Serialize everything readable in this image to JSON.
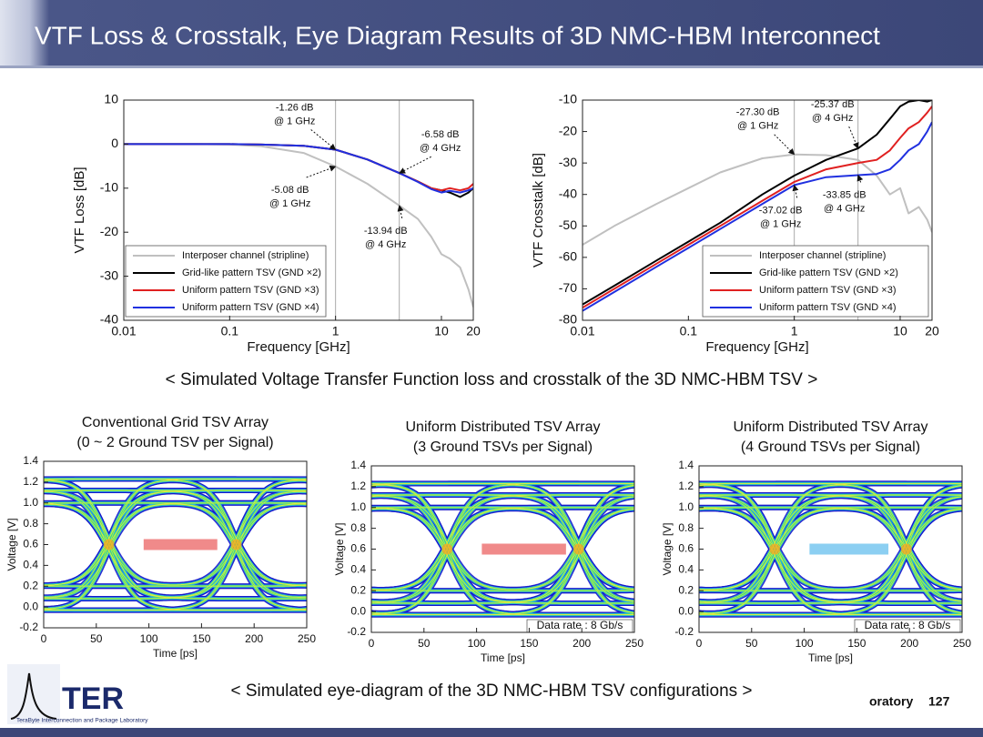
{
  "header": {
    "title": "VTF Loss & Crosstalk, Eye Diagram Results of 3D NMC-HBM Interconnect"
  },
  "captions": [
    "< Simulated Voltage Transfer Function loss and crosstalk of the 3D NMC-HBM TSV >",
    "< Simulated eye-diagram of the 3D NMC-HBM TSV configurations >"
  ],
  "footer": {
    "logo": "TER",
    "lab": "TeraByte Interconnection and Package Laboratory",
    "lab_tail": "oratory",
    "page": "127"
  },
  "chart_data": [
    {
      "type": "line",
      "xscale": "log",
      "x_label": "Frequency [GHz]",
      "y_label": "VTF Loss [dB]",
      "xlim": [
        0.01,
        20
      ],
      "xticks": [
        0.01,
        0.1,
        1,
        10,
        20
      ],
      "ylim": [
        -40,
        10
      ],
      "yticks": [
        -40,
        -30,
        -20,
        -10,
        0,
        10
      ],
      "vlines": [
        1,
        4
      ],
      "legend": "lower left",
      "x": [
        0.01,
        0.02,
        0.05,
        0.1,
        0.2,
        0.5,
        1,
        2,
        4,
        6,
        8,
        10,
        12,
        15,
        18,
        20
      ],
      "series": [
        {
          "name": "Interposer channel (stripline)",
          "color": "#c0c0c0",
          "values": [
            0,
            0,
            0,
            -0.1,
            -0.5,
            -2,
            -5.08,
            -9,
            -13.94,
            -17,
            -21,
            -25,
            -26,
            -28,
            -33,
            -37
          ]
        },
        {
          "name": "Grid-like pattern TSV (GND ×2)",
          "color": "#000000",
          "values": [
            0,
            0,
            0,
            0,
            -0.1,
            -0.4,
            -1.26,
            -3.5,
            -6.58,
            -8.5,
            -10,
            -10.5,
            -11,
            -12,
            -11,
            -10
          ]
        },
        {
          "name": "Uniform pattern TSV (GND ×3)",
          "color": "#e02020",
          "values": [
            0,
            0,
            0,
            0,
            -0.1,
            -0.4,
            -1.26,
            -3.5,
            -6.58,
            -8.5,
            -10,
            -10.5,
            -10,
            -10.5,
            -10,
            -9
          ]
        },
        {
          "name": "Uniform pattern TSV (GND ×4)",
          "color": "#2030e0",
          "values": [
            0,
            0,
            0,
            0,
            -0.1,
            -0.4,
            -1.26,
            -3.5,
            -6.58,
            -8.6,
            -10.2,
            -11,
            -10.6,
            -11,
            -10.5,
            -10
          ]
        }
      ],
      "annotations": [
        {
          "text": [
            "-1.26 dB",
            "@ 1 GHz"
          ],
          "x": 1,
          "y": -1.26
        },
        {
          "text": [
            "-6.58 dB",
            "@ 4 GHz"
          ],
          "x": 4,
          "y": -6.58
        },
        {
          "text": [
            "-5.08 dB",
            "@ 1 GHz"
          ],
          "x": 1,
          "y": -5.08
        },
        {
          "text": [
            "-13.94 dB",
            "@ 4 GHz"
          ],
          "x": 4,
          "y": -13.94
        }
      ]
    },
    {
      "type": "line",
      "xscale": "log",
      "x_label": "Frequency [GHz]",
      "y_label": "VTF Crosstalk [dB]",
      "xlim": [
        0.01,
        20
      ],
      "xticks": [
        0.01,
        0.1,
        1,
        10,
        20
      ],
      "ylim": [
        -80,
        -10
      ],
      "yticks": [
        -80,
        -70,
        -60,
        -50,
        -40,
        -30,
        -20,
        -10
      ],
      "vlines": [
        1,
        4
      ],
      "legend": "lower right",
      "x": [
        0.01,
        0.02,
        0.05,
        0.1,
        0.2,
        0.5,
        1,
        2,
        4,
        6,
        8,
        10,
        12,
        15,
        18,
        20
      ],
      "series": [
        {
          "name": "Interposer channel (stripline)",
          "color": "#c0c0c0",
          "values": [
            -56,
            -50,
            -43,
            -38,
            -33,
            -28.5,
            -27.3,
            -27.5,
            -29,
            -34,
            -40,
            -38,
            -46,
            -44,
            -48,
            -52
          ]
        },
        {
          "name": "Grid-like pattern TSV (GND ×2)",
          "color": "#000000",
          "values": [
            -75,
            -69,
            -61,
            -55,
            -49,
            -40,
            -34,
            -29,
            -25.37,
            -21,
            -16,
            -12,
            -10.5,
            -10,
            -10.5,
            -10
          ]
        },
        {
          "name": "Uniform pattern TSV (GND ×3)",
          "color": "#e02020",
          "values": [
            -76,
            -70,
            -62,
            -56,
            -50,
            -42,
            -36,
            -32,
            -30,
            -29,
            -26,
            -22,
            -19,
            -17,
            -14,
            -12
          ]
        },
        {
          "name": "Uniform pattern TSV (GND ×4)",
          "color": "#2030e0",
          "values": [
            -77,
            -71,
            -63,
            -57,
            -51,
            -43,
            -37.02,
            -34.5,
            -33.85,
            -33.5,
            -32,
            -29,
            -26,
            -24,
            -20,
            -17
          ]
        }
      ],
      "annotations": [
        {
          "text": [
            "-27.30 dB",
            "@ 1 GHz"
          ],
          "x": 1,
          "y": -27.3
        },
        {
          "text": [
            "-25.37 dB",
            "@ 4 GHz"
          ],
          "x": 4,
          "y": -25.37
        },
        {
          "text": [
            "-37.02 dB",
            "@ 1 GHz"
          ],
          "x": 1,
          "y": -37.02
        },
        {
          "text": [
            "-33.85 dB",
            "@ 4 GHz"
          ],
          "x": 4,
          "y": -33.85
        }
      ]
    },
    {
      "type": "eye",
      "title": [
        "Conventional Grid TSV Array",
        "(0 ~ 2 Ground TSV per Signal)"
      ],
      "x_label": "Time [ps]",
      "y_label": "Voltage [V]",
      "xlim": [
        0,
        250
      ],
      "xticks": [
        0,
        50,
        100,
        150,
        200,
        250
      ],
      "ylim": [
        -0.2,
        1.4
      ],
      "yticks": [
        -0.2,
        {
          "value": 0,
          "label": "0.0"
        },
        0.2,
        0.4,
        0.6,
        0.8,
        {
          "value": 1,
          "label": "1.0"
        },
        1.2,
        1.4
      ],
      "crossings": [
        62,
        183
      ],
      "eye_bar": {
        "x": [
          95,
          165
        ],
        "y": 0.6,
        "color": "#f08a8a"
      }
    },
    {
      "type": "eye",
      "title": [
        "Uniform Distributed TSV Array",
        "(3 Ground TSVs per Signal)"
      ],
      "x_label": "Time [ps]",
      "y_label": "Voltage [V]",
      "xlim": [
        0,
        250
      ],
      "xticks": [
        0,
        50,
        100,
        150,
        200,
        250
      ],
      "ylim": [
        -0.2,
        1.4
      ],
      "yticks": [
        -0.2,
        {
          "value": 0,
          "label": "0.0"
        },
        0.2,
        0.4,
        0.6,
        0.8,
        {
          "value": 1,
          "label": "1.0"
        },
        1.2,
        1.4
      ],
      "crossings": [
        72,
        197
      ],
      "eye_bar": {
        "x": [
          105,
          185
        ],
        "y": 0.6,
        "color": "#f08a8a"
      },
      "annotation": "Data rate : 8 Gb/s"
    },
    {
      "type": "eye",
      "title": [
        "Uniform Distributed TSV Array",
        "(4 Ground TSVs per Signal)"
      ],
      "x_label": "Time [ps]",
      "y_label": "Voltage [V]",
      "xlim": [
        0,
        250
      ],
      "xticks": [
        0,
        50,
        100,
        150,
        200,
        250
      ],
      "ylim": [
        -0.2,
        1.4
      ],
      "yticks": [
        -0.2,
        {
          "value": 0,
          "label": "0.0"
        },
        0.2,
        0.4,
        0.6,
        0.8,
        {
          "value": 1,
          "label": "1.0"
        },
        1.2,
        1.4
      ],
      "crossings": [
        72,
        197
      ],
      "eye_bar": {
        "x": [
          105,
          180
        ],
        "y": 0.6,
        "color": "#8ccff2"
      },
      "annotation": "Data rate : 8 Gb/s"
    }
  ]
}
